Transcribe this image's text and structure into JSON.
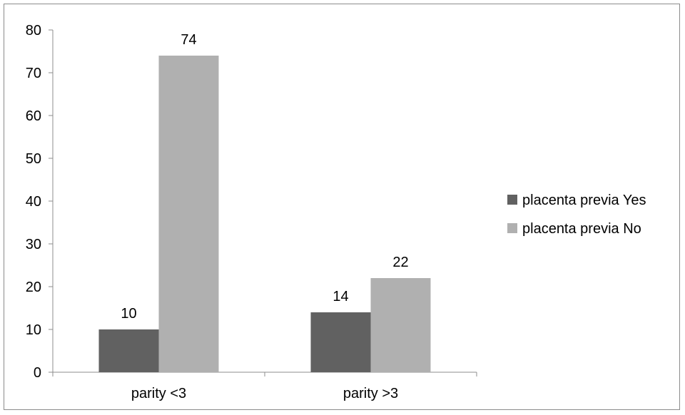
{
  "chart_data": {
    "type": "bar",
    "categories": [
      "parity <3",
      "parity >3"
    ],
    "series": [
      {
        "name": "placenta previa Yes",
        "values": [
          10,
          14
        ],
        "color": "#616161"
      },
      {
        "name": "placenta previa No",
        "values": [
          74,
          22
        ],
        "color": "#b0b0b0"
      }
    ],
    "title": "",
    "xlabel": "",
    "ylabel": "",
    "ylim": [
      0,
      80
    ],
    "yticks": [
      0,
      10,
      20,
      30,
      40,
      50,
      60,
      70,
      80
    ],
    "grid": false,
    "legend_position": "right",
    "data_labels": true
  }
}
